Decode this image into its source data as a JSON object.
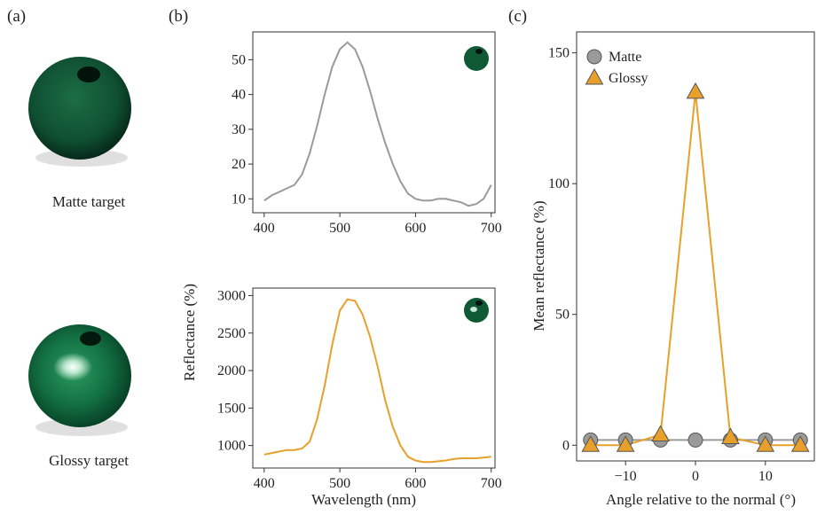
{
  "panels": {
    "a": {
      "label": "(a)",
      "matte_caption": "Matte target",
      "glossy_caption": "Glossy target"
    },
    "b": {
      "label": "(b)",
      "ylabel": "Reflectance (%)",
      "xlabel": "Wavelength (nm)"
    },
    "c": {
      "label": "(c)"
    }
  },
  "colors": {
    "matte": "#9a9a9a",
    "glossy": "#e8a02a",
    "bead": "#0f5a35",
    "frame": "#333333"
  },
  "chart_data": [
    {
      "id": "b-top",
      "type": "line",
      "xlim": [
        385,
        705
      ],
      "ylim": [
        6,
        58
      ],
      "xticks": [
        400,
        500,
        600,
        700
      ],
      "yticks": [
        10,
        20,
        30,
        40,
        50
      ],
      "series": [
        {
          "color": "#9a9a9a",
          "x": [
            400,
            410,
            420,
            430,
            440,
            450,
            460,
            470,
            480,
            490,
            500,
            510,
            520,
            530,
            540,
            550,
            560,
            570,
            580,
            590,
            600,
            610,
            620,
            630,
            640,
            650,
            660,
            670,
            680,
            690,
            700
          ],
          "y": [
            9.5,
            11,
            12,
            13,
            14,
            17,
            23,
            31,
            40,
            48,
            53,
            55,
            53,
            48,
            41,
            33,
            26,
            20,
            15,
            11.5,
            10,
            9.5,
            9.5,
            10,
            10,
            9.5,
            9,
            8,
            8.5,
            10,
            14
          ]
        }
      ]
    },
    {
      "id": "b-bottom",
      "type": "line",
      "xlim": [
        385,
        705
      ],
      "ylim": [
        700,
        3100
      ],
      "xticks": [
        400,
        500,
        600,
        700
      ],
      "yticks": [
        1000,
        1500,
        2000,
        2500,
        3000
      ],
      "series": [
        {
          "color": "#e8a02a",
          "x": [
            400,
            410,
            420,
            430,
            440,
            450,
            460,
            470,
            480,
            490,
            500,
            510,
            520,
            530,
            540,
            550,
            560,
            570,
            580,
            590,
            600,
            610,
            620,
            630,
            640,
            650,
            660,
            670,
            680,
            690,
            700
          ],
          "y": [
            880,
            900,
            920,
            940,
            940,
            960,
            1050,
            1350,
            1800,
            2350,
            2800,
            2950,
            2930,
            2750,
            2450,
            2050,
            1600,
            1250,
            1000,
            850,
            800,
            780,
            780,
            790,
            800,
            820,
            830,
            830,
            830,
            840,
            850
          ]
        }
      ]
    },
    {
      "id": "c",
      "type": "line",
      "title": "",
      "xlabel": "Angle relative to the normal (°)",
      "ylabel": "Mean reflectance (%)",
      "xlim": [
        -17,
        17
      ],
      "ylim": [
        -6,
        158
      ],
      "xticks": [
        -10,
        0,
        10
      ],
      "yticks": [
        0,
        50,
        100,
        150
      ],
      "legend": "top-left",
      "series": [
        {
          "name": "Matte",
          "color": "#9a9a9a",
          "marker": "circle",
          "x": [
            -15,
            -10,
            -5,
            0,
            5,
            10,
            15
          ],
          "y": [
            2,
            2,
            2,
            2,
            2,
            2,
            2
          ]
        },
        {
          "name": "Glossy",
          "color": "#e8a02a",
          "marker": "triangle",
          "x": [
            -15,
            -10,
            -5,
            0,
            5,
            10,
            15
          ],
          "y": [
            0,
            0,
            4,
            135,
            3,
            0,
            0
          ]
        }
      ]
    }
  ]
}
